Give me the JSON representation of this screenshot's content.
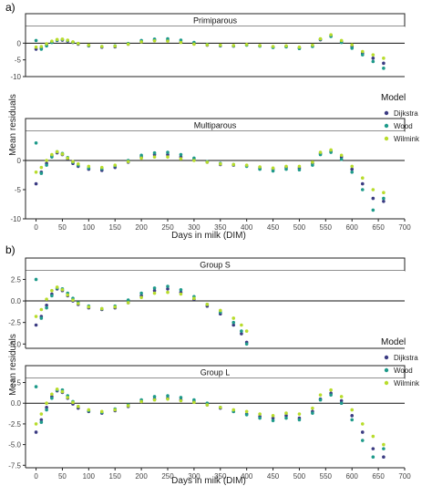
{
  "figure": {
    "panel_a_label": "a)",
    "panel_b_label": "b)",
    "y_label": "Mean residuals",
    "x_label": "Days in milk (DIM)",
    "legend_title": "Model"
  },
  "colors": {
    "Dijkstra": "#3b3b82",
    "Wood": "#1e9a8a",
    "Wilmink": "#b8dc2c"
  },
  "chart_data": [
    {
      "type": "scatter",
      "panel": "a",
      "facet": "Primiparous",
      "xlim": [
        -20,
        700
      ],
      "ylim": [
        -10,
        5
      ],
      "x_ticks": [
        0,
        50,
        100,
        150,
        200,
        250,
        300,
        350,
        400,
        450,
        500,
        550,
        600,
        650,
        700
      ],
      "y_ticks": [
        -10,
        -5,
        0
      ],
      "y_tick_labels": [
        "-10",
        "-5",
        "0"
      ],
      "grid": false,
      "reference_line_y": 0,
      "legend_position": "right",
      "series": [
        {
          "name": "Dijkstra",
          "x": [
            0,
            10,
            20,
            30,
            40,
            50,
            60,
            70,
            80,
            100,
            125,
            150,
            175,
            200,
            225,
            250,
            275,
            300,
            325,
            350,
            375,
            400,
            425,
            450,
            475,
            500,
            525,
            540,
            560,
            580,
            600,
            620,
            640,
            660
          ],
          "y": [
            -1.8,
            -1.5,
            -0.5,
            0.3,
            0.8,
            0.9,
            0.6,
            0.2,
            -0.3,
            -0.8,
            -1.2,
            -1.1,
            -0.3,
            0.5,
            0.9,
            0.8,
            0.3,
            -0.2,
            -0.6,
            -0.8,
            -0.9,
            -0.5,
            -0.8,
            -1.2,
            -1.0,
            -1.4,
            -0.8,
            1.0,
            2.3,
            0.5,
            -1.0,
            -3.0,
            -4.5,
            -6.0
          ]
        },
        {
          "name": "Wood",
          "x": [
            0,
            10,
            20,
            30,
            40,
            50,
            60,
            70,
            80,
            100,
            125,
            150,
            175,
            200,
            225,
            250,
            275,
            300,
            325,
            350,
            375,
            400,
            425,
            450,
            475,
            500,
            525,
            540,
            560,
            580,
            600,
            620,
            640,
            660
          ],
          "y": [
            0.8,
            -1.8,
            -0.8,
            0.2,
            0.9,
            1.1,
            0.8,
            0.3,
            -0.1,
            -0.7,
            -1.0,
            -0.8,
            -0.1,
            0.8,
            1.2,
            1.3,
            0.9,
            0.2,
            -0.4,
            -0.7,
            -0.8,
            -0.6,
            -0.9,
            -1.3,
            -1.1,
            -1.6,
            -1.0,
            1.2,
            2.0,
            0.2,
            -1.5,
            -3.5,
            -5.5,
            -7.5
          ]
        },
        {
          "name": "Wilmink",
          "x": [
            0,
            10,
            20,
            30,
            40,
            50,
            60,
            70,
            80,
            100,
            125,
            150,
            175,
            200,
            225,
            250,
            275,
            300,
            325,
            350,
            375,
            400,
            425,
            450,
            475,
            500,
            525,
            540,
            560,
            580,
            600,
            620,
            640,
            660
          ],
          "y": [
            -1.2,
            -1.0,
            -0.2,
            0.6,
            1.1,
            1.2,
            0.9,
            0.4,
            -0.1,
            -0.6,
            -1.0,
            -0.9,
            -0.3,
            0.4,
            0.7,
            0.6,
            0.2,
            -0.3,
            -0.5,
            -0.6,
            -0.7,
            -0.4,
            -0.7,
            -1.0,
            -0.8,
            -1.2,
            -0.6,
            1.3,
            2.5,
            0.8,
            -0.5,
            -2.5,
            -3.5,
            -4.5
          ]
        }
      ]
    },
    {
      "type": "scatter",
      "panel": "a",
      "facet": "Multiparous",
      "xlim": [
        -20,
        700
      ],
      "ylim": [
        -10,
        5
      ],
      "x_ticks": [
        0,
        50,
        100,
        150,
        200,
        250,
        300,
        350,
        400,
        450,
        500,
        550,
        600,
        650,
        700
      ],
      "y_ticks": [
        -10,
        -5,
        0
      ],
      "y_tick_labels": [
        "-10",
        "-5",
        "0"
      ],
      "grid": false,
      "reference_line_y": 0,
      "legend_position": "right",
      "series": [
        {
          "name": "Dijkstra",
          "x": [
            0,
            10,
            20,
            30,
            40,
            50,
            60,
            70,
            80,
            100,
            125,
            150,
            175,
            200,
            225,
            250,
            275,
            300,
            325,
            350,
            375,
            400,
            425,
            450,
            475,
            500,
            525,
            540,
            560,
            580,
            600,
            620,
            640,
            660
          ],
          "y": [
            -4.0,
            -2.0,
            -0.5,
            0.8,
            1.3,
            1.0,
            0.3,
            -0.5,
            -1.0,
            -1.5,
            -1.7,
            -1.2,
            -0.3,
            0.6,
            1.0,
            1.0,
            0.6,
            0.1,
            -0.3,
            -0.7,
            -0.8,
            -0.9,
            -1.3,
            -1.5,
            -1.2,
            -1.3,
            -0.5,
            1.2,
            1.6,
            0.6,
            -1.5,
            -4.0,
            -6.5,
            -7.0
          ]
        },
        {
          "name": "Wood",
          "x": [
            0,
            10,
            20,
            30,
            40,
            50,
            60,
            70,
            80,
            100,
            125,
            150,
            175,
            200,
            225,
            250,
            275,
            300,
            325,
            350,
            375,
            400,
            425,
            450,
            475,
            500,
            525,
            540,
            560,
            580,
            600,
            620,
            640,
            660
          ],
          "y": [
            3.0,
            -2.2,
            -0.8,
            0.6,
            1.5,
            1.2,
            0.5,
            -0.3,
            -0.8,
            -1.3,
            -1.4,
            -0.9,
            0.0,
            0.9,
            1.3,
            1.4,
            1.0,
            0.4,
            -0.2,
            -0.5,
            -0.7,
            -1.0,
            -1.5,
            -1.8,
            -1.5,
            -1.6,
            -0.8,
            1.0,
            1.4,
            0.2,
            -2.0,
            -5.0,
            -8.5,
            -6.5
          ]
        },
        {
          "name": "Wilmink",
          "x": [
            0,
            10,
            20,
            30,
            40,
            50,
            60,
            70,
            80,
            100,
            125,
            150,
            175,
            200,
            225,
            250,
            275,
            300,
            325,
            350,
            375,
            400,
            425,
            450,
            475,
            500,
            525,
            540,
            560,
            580,
            600,
            620,
            640,
            660
          ],
          "y": [
            -2.0,
            -1.2,
            0.0,
            1.0,
            1.5,
            1.1,
            0.4,
            -0.2,
            -0.6,
            -1.0,
            -1.2,
            -0.8,
            -0.2,
            0.4,
            0.6,
            0.6,
            0.3,
            0.0,
            -0.3,
            -0.6,
            -0.7,
            -0.8,
            -1.1,
            -1.3,
            -1.0,
            -1.0,
            -0.3,
            1.4,
            1.8,
            0.9,
            -1.0,
            -3.0,
            -5.0,
            -5.5
          ]
        }
      ]
    },
    {
      "type": "scatter",
      "panel": "b",
      "facet": "Group S",
      "xlim": [
        -20,
        700
      ],
      "ylim": [
        -5.5,
        3.5
      ],
      "x_ticks": [
        0,
        50,
        100,
        150,
        200,
        250,
        300,
        350,
        400,
        450,
        500,
        550,
        600,
        650,
        700
      ],
      "y_ticks": [
        -5.0,
        -2.5,
        0.0,
        2.5
      ],
      "y_tick_labels": [
        "-5.0",
        "-2.5",
        "0.0",
        "2.5"
      ],
      "grid": false,
      "reference_line_y": 0,
      "legend_position": "right",
      "series": [
        {
          "name": "Dijkstra",
          "x": [
            0,
            10,
            20,
            30,
            40,
            50,
            60,
            70,
            80,
            100,
            125,
            150,
            175,
            200,
            225,
            250,
            275,
            300,
            325,
            350,
            375,
            390,
            400
          ],
          "y": [
            -2.8,
            -1.8,
            -0.5,
            0.8,
            1.4,
            1.2,
            0.6,
            0.0,
            -0.4,
            -0.8,
            -1.0,
            -0.8,
            -0.2,
            0.6,
            1.2,
            1.4,
            1.0,
            0.2,
            -0.6,
            -1.5,
            -2.8,
            -3.8,
            -4.8
          ]
        },
        {
          "name": "Wood",
          "x": [
            0,
            10,
            20,
            30,
            40,
            50,
            60,
            70,
            80,
            100,
            125,
            150,
            175,
            200,
            225,
            250,
            275,
            300,
            325,
            350,
            375,
            390,
            400
          ],
          "y": [
            2.5,
            -2.0,
            -0.8,
            0.6,
            1.5,
            1.4,
            0.9,
            0.3,
            -0.2,
            -0.6,
            -0.9,
            -0.6,
            0.1,
            0.9,
            1.5,
            1.7,
            1.3,
            0.5,
            -0.4,
            -1.3,
            -2.5,
            -3.5,
            -5.0
          ]
        },
        {
          "name": "Wilmink",
          "x": [
            0,
            10,
            20,
            30,
            40,
            50,
            60,
            70,
            80,
            100,
            125,
            150,
            175,
            200,
            225,
            250,
            275,
            300,
            325,
            350,
            375,
            390,
            400
          ],
          "y": [
            -1.8,
            -1.0,
            0.2,
            1.2,
            1.6,
            1.3,
            0.7,
            0.1,
            -0.3,
            -0.7,
            -0.9,
            -0.7,
            -0.2,
            0.4,
            0.9,
            1.0,
            0.8,
            0.3,
            -0.4,
            -1.1,
            -2.0,
            -2.8,
            -3.5
          ]
        }
      ]
    },
    {
      "type": "scatter",
      "panel": "b",
      "facet": "Group L",
      "xlim": [
        -20,
        700
      ],
      "ylim": [
        -7.8,
        3.0
      ],
      "x_ticks": [
        0,
        50,
        100,
        150,
        200,
        250,
        300,
        350,
        400,
        450,
        500,
        550,
        600,
        650,
        700
      ],
      "y_ticks": [
        -7.5,
        -5.0,
        -2.5,
        0.0,
        2.5
      ],
      "y_tick_labels": [
        "-7.5",
        "-5.0",
        "-2.5",
        "0.0",
        "2.5"
      ],
      "grid": false,
      "reference_line_y": 0,
      "legend_position": "right",
      "series": [
        {
          "name": "Dijkstra",
          "x": [
            0,
            10,
            20,
            30,
            40,
            50,
            60,
            70,
            80,
            100,
            125,
            150,
            175,
            200,
            225,
            250,
            275,
            300,
            325,
            350,
            375,
            400,
            425,
            450,
            475,
            500,
            525,
            540,
            560,
            580,
            600,
            620,
            640,
            660
          ],
          "y": [
            -3.5,
            -2.0,
            -0.5,
            0.8,
            1.5,
            1.3,
            0.6,
            -0.1,
            -0.6,
            -1.0,
            -1.2,
            -0.9,
            -0.4,
            0.2,
            0.5,
            0.6,
            0.4,
            0.2,
            -0.2,
            -0.6,
            -1.0,
            -1.3,
            -1.6,
            -1.8,
            -1.5,
            -1.8,
            -1.0,
            0.5,
            1.2,
            0.3,
            -1.5,
            -3.5,
            -5.5,
            -6.5
          ]
        },
        {
          "name": "Wood",
          "x": [
            0,
            10,
            20,
            30,
            40,
            50,
            60,
            70,
            80,
            100,
            125,
            150,
            175,
            200,
            225,
            250,
            275,
            300,
            325,
            350,
            375,
            400,
            425,
            450,
            475,
            500,
            525,
            540,
            560,
            580,
            600,
            620,
            640,
            660
          ],
          "y": [
            2.0,
            -2.3,
            -0.8,
            0.6,
            1.6,
            1.6,
            0.9,
            0.2,
            -0.4,
            -0.9,
            -1.1,
            -0.7,
            -0.2,
            0.4,
            0.8,
            0.9,
            0.7,
            0.4,
            0.0,
            -0.5,
            -1.0,
            -1.4,
            -1.8,
            -2.1,
            -1.8,
            -2.0,
            -1.2,
            0.4,
            1.0,
            0.0,
            -2.0,
            -4.5,
            -6.5,
            -5.5
          ]
        },
        {
          "name": "Wilmink",
          "x": [
            0,
            10,
            20,
            30,
            40,
            50,
            60,
            70,
            80,
            100,
            125,
            150,
            175,
            200,
            225,
            250,
            275,
            300,
            325,
            350,
            375,
            400,
            425,
            450,
            475,
            500,
            525,
            540,
            560,
            580,
            600,
            620,
            640,
            660
          ],
          "y": [
            -2.5,
            -1.3,
            0.0,
            1.1,
            1.7,
            1.4,
            0.7,
            0.1,
            -0.4,
            -0.8,
            -1.0,
            -0.8,
            -0.3,
            0.2,
            0.4,
            0.5,
            0.3,
            0.1,
            -0.2,
            -0.5,
            -0.8,
            -1.0,
            -1.3,
            -1.5,
            -1.2,
            -1.3,
            -0.6,
            1.0,
            1.6,
            0.8,
            -0.8,
            -2.5,
            -4.0,
            -5.0
          ]
        }
      ]
    }
  ]
}
